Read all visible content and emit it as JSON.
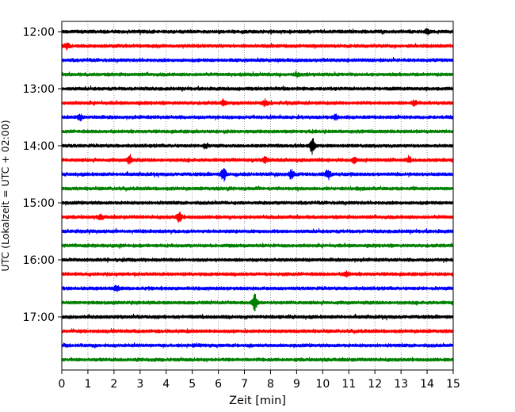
{
  "chart_data": {
    "type": "line",
    "title": "",
    "xlabel": "Zeit  [min]",
    "ylabel": "UTC (Lokalzeit = UTC + 02:00)",
    "xlim": [
      0,
      15
    ],
    "x_ticks": [
      0,
      1,
      2,
      3,
      4,
      5,
      6,
      7,
      8,
      9,
      10,
      11,
      12,
      13,
      14,
      15
    ],
    "y_tick_labels": [
      "12:00",
      "13:00",
      "14:00",
      "15:00",
      "16:00",
      "17:00"
    ],
    "grid": "vertical dotted at each minute",
    "row_interval_minutes": 15,
    "row_colors": [
      "#000000",
      "#ff0000",
      "#0000ff",
      "#008000"
    ],
    "series": [
      {
        "start": "12:00",
        "color": "#000000",
        "events": [
          {
            "t": 14.0,
            "amp": 0.25
          }
        ]
      },
      {
        "start": "12:15",
        "color": "#ff0000",
        "events": [
          {
            "t": 0.2,
            "amp": 0.35
          }
        ]
      },
      {
        "start": "12:30",
        "color": "#0000ff",
        "events": []
      },
      {
        "start": "12:45",
        "color": "#008000",
        "events": [
          {
            "t": 9.0,
            "amp": 0.25
          }
        ]
      },
      {
        "start": "13:00",
        "color": "#000000",
        "events": []
      },
      {
        "start": "13:15",
        "color": "#ff0000",
        "events": [
          {
            "t": 6.2,
            "amp": 0.3
          },
          {
            "t": 7.8,
            "amp": 0.35
          },
          {
            "t": 13.5,
            "amp": 0.3
          }
        ]
      },
      {
        "start": "13:30",
        "color": "#0000ff",
        "events": [
          {
            "t": 0.7,
            "amp": 0.3
          },
          {
            "t": 10.5,
            "amp": 0.3
          }
        ]
      },
      {
        "start": "13:45",
        "color": "#008000",
        "events": []
      },
      {
        "start": "14:00",
        "color": "#000000",
        "events": [
          {
            "t": 5.5,
            "amp": 0.25
          },
          {
            "t": 9.6,
            "amp": 0.9
          }
        ]
      },
      {
        "start": "14:15",
        "color": "#ff0000",
        "events": [
          {
            "t": 2.6,
            "amp": 0.6
          },
          {
            "t": 7.8,
            "amp": 0.3
          },
          {
            "t": 11.2,
            "amp": 0.3
          },
          {
            "t": 13.3,
            "amp": 0.3
          }
        ]
      },
      {
        "start": "14:30",
        "color": "#0000ff",
        "events": [
          {
            "t": 6.2,
            "amp": 0.8
          },
          {
            "t": 8.8,
            "amp": 0.5
          },
          {
            "t": 10.2,
            "amp": 0.6
          }
        ]
      },
      {
        "start": "14:45",
        "color": "#008000",
        "events": []
      },
      {
        "start": "15:00",
        "color": "#000000",
        "events": []
      },
      {
        "start": "15:15",
        "color": "#ff0000",
        "events": [
          {
            "t": 1.5,
            "amp": 0.25
          },
          {
            "t": 4.5,
            "amp": 0.6
          }
        ]
      },
      {
        "start": "15:30",
        "color": "#0000ff",
        "events": []
      },
      {
        "start": "15:45",
        "color": "#008000",
        "events": []
      },
      {
        "start": "16:00",
        "color": "#000000",
        "events": []
      },
      {
        "start": "16:15",
        "color": "#ff0000",
        "events": [
          {
            "t": 10.9,
            "amp": 0.3
          }
        ]
      },
      {
        "start": "16:30",
        "color": "#0000ff",
        "events": [
          {
            "t": 2.1,
            "amp": 0.35
          }
        ]
      },
      {
        "start": "16:45",
        "color": "#008000",
        "events": [
          {
            "t": 7.4,
            "amp": 1.1
          }
        ]
      },
      {
        "start": "17:00",
        "color": "#000000",
        "events": []
      },
      {
        "start": "17:15",
        "color": "#ff0000",
        "events": []
      },
      {
        "start": "17:30",
        "color": "#0000ff",
        "events": []
      },
      {
        "start": "17:45",
        "color": "#008000",
        "events": []
      }
    ]
  }
}
